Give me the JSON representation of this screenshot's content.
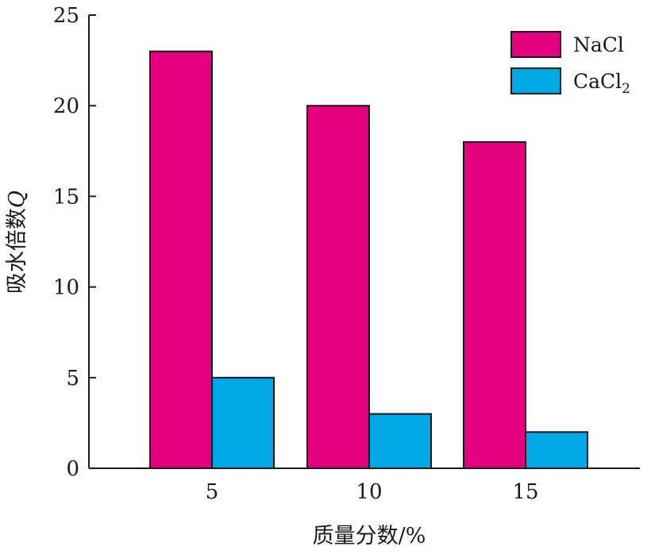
{
  "chart_data": {
    "type": "bar",
    "categories": [
      "5",
      "10",
      "15"
    ],
    "series": [
      {
        "name": "NaCl",
        "name_main": "NaCl",
        "name_sub": "",
        "color": "#e5007f",
        "values": [
          23,
          20,
          18
        ]
      },
      {
        "name": "CaCl₂",
        "name_main": "CaCl",
        "name_sub": "2",
        "color": "#00a9e6",
        "values": [
          5,
          3,
          2
        ]
      }
    ],
    "xlabel": "质量分数/%",
    "ylabel": "吸水倍数Q",
    "ylabel_main": "吸水倍数",
    "ylabel_var": "Q",
    "ylim": [
      0,
      25
    ],
    "yticks": [
      0,
      5,
      10,
      15,
      20,
      25
    ],
    "grid": false,
    "legend_position": "top-right"
  }
}
